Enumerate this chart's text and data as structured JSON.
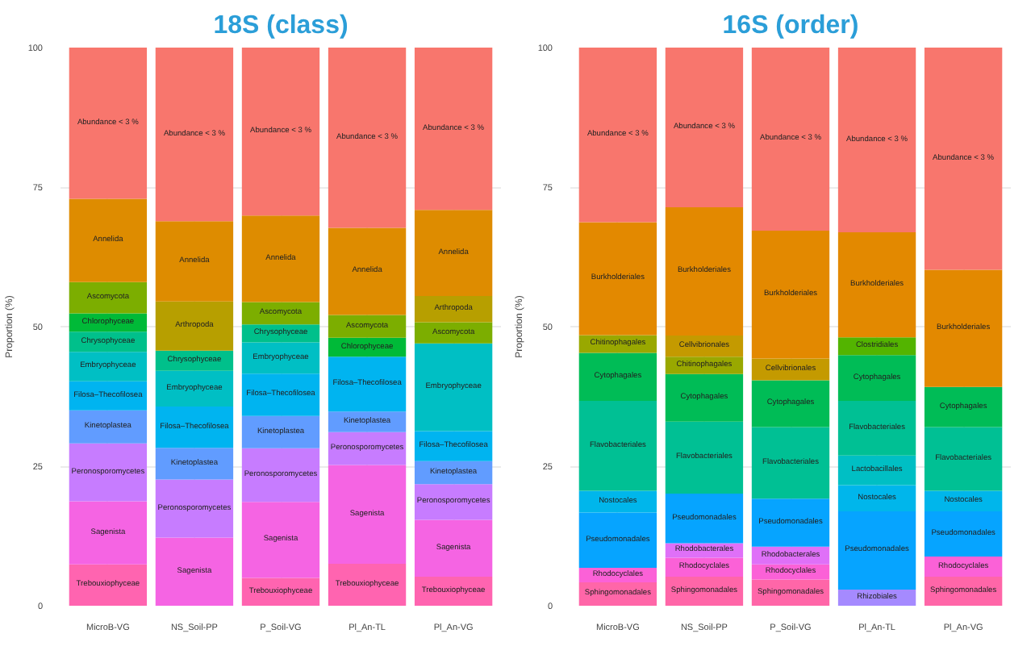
{
  "chart_data": [
    {
      "type": "bar",
      "title": "18S (class)",
      "ylabel": "Proportion (%)",
      "categories": [
        "MicroB-VG",
        "NS_Soil-PP",
        "P_Soil-VG",
        "Pl_An-TL",
        "Pl_An-VG"
      ],
      "stacked": true,
      "ylim": [
        0,
        100
      ],
      "yticks": [
        0,
        25,
        50,
        75,
        100
      ],
      "grid": true,
      "series": [
        {
          "name": "Trebouxiophyceae",
          "color": "#ff64b0",
          "values": [
            7.4,
            null,
            5.0,
            7.5,
            5.2
          ]
        },
        {
          "name": "Sagenista",
          "color": "#f564e3",
          "values": [
            11.3,
            12.2,
            13.6,
            17.7,
            10.2
          ]
        },
        {
          "name": "Peronosporomycetes",
          "color": "#c77cff",
          "values": [
            10.4,
            10.4,
            9.6,
            5.9,
            6.4
          ]
        },
        {
          "name": "Kinetoplastea",
          "color": "#619cff",
          "values": [
            5.9,
            5.7,
            5.8,
            3.7,
            4.1
          ]
        },
        {
          "name": "Filosa–Thecofilosea",
          "color": "#00b4f0",
          "values": [
            5.2,
            7.4,
            7.6,
            9.8,
            5.4
          ]
        },
        {
          "name": "Embryophyceae",
          "color": "#00bfc4",
          "values": [
            5.3,
            6.4,
            5.6,
            null,
            15.7
          ]
        },
        {
          "name": "Chrysophyceae",
          "color": "#00c08b",
          "values": [
            3.6,
            3.6,
            3.2,
            null,
            null
          ]
        },
        {
          "name": "Chlorophyceae",
          "color": "#00ba38",
          "values": [
            3.3,
            null,
            null,
            3.4,
            null
          ]
        },
        {
          "name": "Ascomycota",
          "color": "#7cae00",
          "values": [
            5.6,
            null,
            4.0,
            4.1,
            3.8
          ]
        },
        {
          "name": "Arthropoda",
          "color": "#b79f00",
          "values": [
            null,
            8.8,
            null,
            null,
            4.7
          ]
        },
        {
          "name": "Annelida",
          "color": "#de8c00",
          "values": [
            14.9,
            14.4,
            15.5,
            15.6,
            15.4
          ]
        },
        {
          "name": "Abundance < 3 %",
          "color": "#f8766d",
          "values": [
            27.1,
            31.1,
            30.1,
            32.3,
            29.1
          ]
        }
      ]
    },
    {
      "type": "bar",
      "title": "16S (order)",
      "ylabel": "Proportion (%)",
      "categories": [
        "MicroB-VG",
        "NS_Soil-PP",
        "P_Soil-VG",
        "Pl_An-TL",
        "Pl_An-VG"
      ],
      "stacked": true,
      "ylim": [
        0,
        100
      ],
      "yticks": [
        0,
        25,
        50,
        75,
        100
      ],
      "grid": true,
      "series": [
        {
          "name": "Sphingomonadales",
          "color": "#ff66a8",
          "values": [
            4.2,
            5.2,
            4.7,
            null,
            5.2
          ]
        },
        {
          "name": "Rhodocyclales",
          "color": "#fb61d7",
          "values": [
            2.6,
            3.4,
            2.7,
            null,
            3.6
          ]
        },
        {
          "name": "Rhodobacterales",
          "color": "#df70f8",
          "values": [
            null,
            2.6,
            3.2,
            null,
            null
          ]
        },
        {
          "name": "Rhizobiales",
          "color": "#a58aff",
          "values": [
            null,
            null,
            null,
            2.9,
            null
          ]
        },
        {
          "name": "Pseudomonadales",
          "color": "#06a4ff",
          "values": [
            9.9,
            8.9,
            8.6,
            14.0,
            8.1
          ]
        },
        {
          "name": "Nostocales",
          "color": "#00b6eb",
          "values": [
            3.9,
            null,
            null,
            4.7,
            3.7
          ]
        },
        {
          "name": "Lactobacillales",
          "color": "#00bfc4",
          "values": [
            null,
            null,
            null,
            5.3,
            null
          ]
        },
        {
          "name": "Flavobacteriales",
          "color": "#00c094",
          "values": [
            16.1,
            12.9,
            12.8,
            9.8,
            11.4
          ]
        },
        {
          "name": "Cytophagales",
          "color": "#00bc56",
          "values": [
            8.6,
            8.5,
            8.4,
            8.2,
            7.2
          ]
        },
        {
          "name": "Clostridiales",
          "color": "#53b400",
          "values": [
            null,
            null,
            null,
            3.2,
            null
          ]
        },
        {
          "name": "Chitinophagales",
          "color": "#99a800",
          "values": [
            3.2,
            3.1,
            null,
            null,
            null
          ]
        },
        {
          "name": "Cellvibrionales",
          "color": "#c49a00",
          "values": [
            null,
            3.8,
            3.9,
            null,
            null
          ]
        },
        {
          "name": "Burkholderiales",
          "color": "#e38900",
          "values": [
            20.2,
            23.0,
            22.9,
            18.8,
            21.0
          ]
        },
        {
          "name": "Abundance < 3 %",
          "color": "#f8766d",
          "values": [
            31.3,
            28.6,
            32.8,
            33.1,
            39.8
          ]
        }
      ]
    }
  ]
}
